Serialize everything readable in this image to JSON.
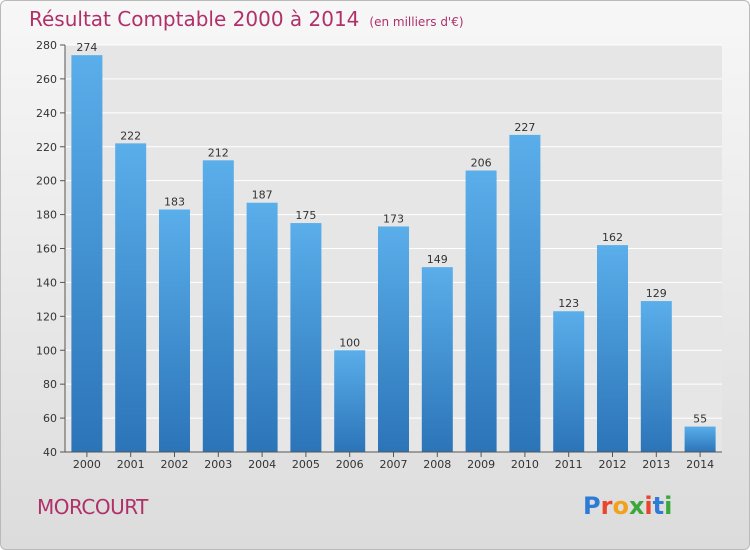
{
  "chart_data": {
    "type": "bar",
    "title": "Résultat Comptable 2000 à 2014",
    "subtitle": "(en milliers d'€)",
    "categories": [
      "2000",
      "2001",
      "2002",
      "2003",
      "2004",
      "2005",
      "2006",
      "2007",
      "2008",
      "2009",
      "2010",
      "2011",
      "2012",
      "2013",
      "2014"
    ],
    "values": [
      274,
      222,
      183,
      212,
      187,
      175,
      100,
      173,
      149,
      206,
      227,
      123,
      162,
      129,
      55
    ],
    "ylim": [
      40,
      280
    ],
    "yticks": [
      40,
      60,
      80,
      100,
      120,
      140,
      160,
      180,
      200,
      220,
      240,
      260,
      280
    ],
    "grid": true,
    "xlabel": "",
    "ylabel": ""
  },
  "commune": "MORCOURT",
  "logo": {
    "text": "Proxiti",
    "letter_colors": [
      "#2e7bd6",
      "#e8452c",
      "#f2a21a",
      "#3aa83b",
      "#e8452c",
      "#2e7bd6",
      "#3aa83b"
    ]
  },
  "colors": {
    "title": "#b0306a",
    "bar_top": "#5aaeea",
    "bar_bottom": "#2b74b8",
    "grid": "#ffffff",
    "plot_bg": "#e6e6e6"
  }
}
